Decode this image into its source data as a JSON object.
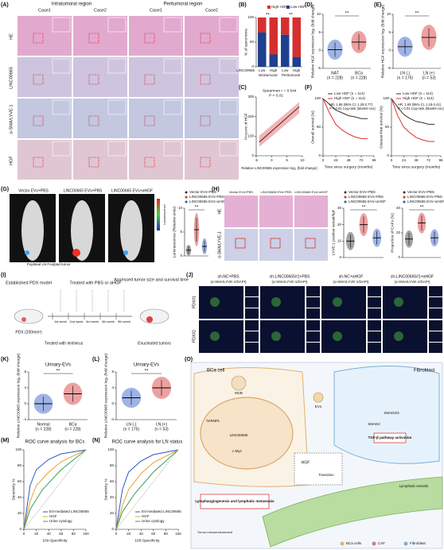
{
  "panels": {
    "A": {
      "label": "(A)",
      "regions": [
        "Intratumoral region",
        "Peritumoral region"
      ],
      "cases": [
        "Case1",
        "Case2",
        "Case1",
        "Case2"
      ],
      "rows": [
        "HE",
        "LINC00665",
        "α-SMA/LYVE-1",
        "HGF"
      ]
    },
    "B": {
      "label": "(B)",
      "ylabel": "% of specimens",
      "xlabel": "LINC00665",
      "categories": [
        "Low",
        "High",
        "Low",
        "High"
      ],
      "groups": [
        "Intratumoral",
        "Peritumoral"
      ],
      "significance": [
        "**",
        "**"
      ],
      "series": [
        {
          "name": "High HGF",
          "color": "#d62f2f",
          "values": [
            30,
            75,
            35,
            80
          ]
        },
        {
          "name": "Low HGF",
          "color": "#1f3f8f",
          "values": [
            70,
            25,
            65,
            20
          ]
        }
      ],
      "ylim": [
        0,
        100
      ],
      "yticks": [
        0,
        50,
        100
      ]
    },
    "C": {
      "label": "(C)",
      "annotation": [
        "Spearman r = 0.644",
        "P < 0.01"
      ],
      "ylabel": "H-score of HGF",
      "xlabel": "Relative LINC00665 expression log₂ (fold change)",
      "xlim": [
        -5,
        10
      ],
      "xticks": [
        -5,
        0,
        5,
        10
      ],
      "ylim": [
        0,
        300
      ],
      "yticks": [
        0,
        100,
        200,
        300
      ],
      "fit": {
        "x": [
          -4,
          9
        ],
        "y": [
          70,
          250
        ]
      },
      "color": "#d62f2f"
    },
    "D": {
      "label": "(D)",
      "ylabel": "Relative HGF expression log₂ (fold change)",
      "categories": [
        "NAT",
        "BCa"
      ],
      "counts": [
        "(n = 228)",
        "(n = 228)"
      ],
      "means": [
        0.2,
        2.3
      ],
      "sds": [
        2.0,
        2.2
      ],
      "colors": [
        "#2a56c6",
        "#d62f2f"
      ],
      "ylim": [
        -5,
        10
      ],
      "yticks": [
        -5,
        0,
        5,
        10
      ],
      "significance": "**"
    },
    "E": {
      "label": "(E)",
      "ylabel": "Relative HGF expression log₂ (fold change)",
      "categories": [
        "LN (-)",
        "LN (+)"
      ],
      "counts": [
        "(n = 175)",
        "(n = 53)"
      ],
      "means": [
        1.0,
        3.6
      ],
      "sds": [
        2.0,
        2.5
      ],
      "colors": [
        "#2a56c6",
        "#d62f2f"
      ],
      "ylim": [
        -5,
        10
      ],
      "yticks": [
        -5,
        0,
        5,
        10
      ],
      "significance": "**"
    },
    "F": {
      "label": "(F)",
      "xlabel": "Time since surgery (months)",
      "xlim": [
        0,
        96
      ],
      "xticks": [
        0,
        24,
        48,
        72,
        96
      ],
      "ylim": [
        0,
        100
      ],
      "yticks": [
        0,
        50,
        100
      ],
      "charts": [
        {
          "ylabel": "Overall survival (%)",
          "annotation": [
            "HR, 1.88 (95% CI, 1.28-2.77)",
            "P < 0.01 Log-rank (Mantel-cox)"
          ],
          "series": [
            {
              "name": "Low HGF (n = 114)",
              "color": "#333333",
              "x": [
                0,
                12,
                24,
                36,
                48,
                60,
                72,
                84
              ],
              "y": [
                100,
                90,
                80,
                75,
                70,
                68,
                65,
                65
              ]
            },
            {
              "name": "High HGF (n = 114)",
              "color": "#e03030",
              "x": [
                0,
                12,
                24,
                36,
                48,
                60,
                72,
                84
              ],
              "y": [
                100,
                75,
                55,
                45,
                38,
                33,
                30,
                30
              ]
            }
          ]
        },
        {
          "ylabel": "Disease-free survival (%)",
          "annotation": [
            "HR, 1.69 (95% CI, 1.19-2.41)",
            "P < 0.01 Log-rank (Mantel-cox)"
          ],
          "series": [
            {
              "name": "Low HGF (n = 114)",
              "color": "#333333",
              "x": [
                0,
                12,
                24,
                36,
                48,
                60,
                72,
                84
              ],
              "y": [
                100,
                85,
                72,
                65,
                60,
                58,
                55,
                55
              ]
            },
            {
              "name": "High HGF (n = 114)",
              "color": "#e03030",
              "x": [
                0,
                12,
                24,
                36,
                48,
                60,
                72,
                84
              ],
              "y": [
                100,
                70,
                50,
                40,
                32,
                28,
                25,
                25
              ]
            }
          ]
        }
      ]
    },
    "G": {
      "label": "(G)",
      "groups": [
        "Vector EVs+PBS",
        "LINC00665 EVs+PBS",
        "LINC00665 EVs+αHGF"
      ],
      "image_labels": [
        "Popliteal LN",
        "Footpad tumor"
      ],
      "colorbar": "Luminescence",
      "plot": {
        "ylabel": "Luminescence (Relative units)",
        "categories": [
          "Vector EVs+PBS",
          "LINC00665 EVs+PBS",
          "LINC00665 EVs+αHGF"
        ],
        "means": [
          1.2,
          5.5,
          2.0
        ],
        "sds": [
          0.8,
          2.5,
          1.2
        ],
        "colors": [
          "#333333",
          "#d62f2f",
          "#2a56c6"
        ],
        "ylim": [
          0,
          10
        ],
        "yticks": [
          0,
          5,
          10
        ],
        "significance": "**"
      }
    },
    "H": {
      "label": "(H)",
      "image_titles": [
        "Vector EVs+PBS",
        "LINC00665 EVs+PBS",
        "LINC00665 EVs+αHGF"
      ],
      "rows": [
        "HE",
        "α-SMA/LYVE-1"
      ],
      "legend": [
        "Vector EVs+PBS",
        "LINC00665 EVs+PBS",
        "LINC00665 EVs+αHGF"
      ],
      "plots": [
        {
          "ylabel": "LYVE-1 positive vessel/hpf",
          "categories": [
            "Vector EVs+PBS",
            "LINC00665 EVs+PBS",
            "LINC00665 EVs+αHGF"
          ],
          "means": [
            10,
            20,
            12
          ],
          "sds": [
            4,
            5,
            4
          ],
          "colors": [
            "#333333",
            "#d62f2f",
            "#2a56c6"
          ],
          "ylim": [
            0,
            30
          ],
          "yticks": [
            0,
            10,
            20,
            30
          ],
          "significance": "**"
        },
        {
          "ylabel": "Proportion of CAFs (%)",
          "categories": [
            "Vector EVs+PBS",
            "LINC00665 EVs+PBS",
            "LINC00665 EVs+αHGF"
          ],
          "means": [
            15,
            28,
            16
          ],
          "sds": [
            5,
            6,
            5
          ],
          "colors": [
            "#333333",
            "#d62f2f",
            "#2a56c6"
          ],
          "ylim": [
            0,
            40
          ],
          "yticks": [
            0,
            20,
            40
          ],
          "significance": "**"
        }
      ]
    },
    "I": {
      "label": "(I)",
      "texts": [
        "Established PDX model",
        "Treated with PBS or αHGF",
        "Assessed tumor size and survival time",
        "PDX (200mm³)",
        "Treated with lentivirus",
        "Enucleated tumors"
      ],
      "weeks": [
        "1st week",
        "2nd week",
        "3rd week",
        "4th week",
        "5th week"
      ]
    },
    "J": {
      "label": "(J)",
      "columns": [
        "sh-NC+PBS",
        "sh-LINC00665#1+PBS",
        "sh-NC+αHGF",
        "sh-LINC00665#1+αHGF"
      ],
      "stain": "(α-SMA/LYVE-1/DAPI)",
      "rows": [
        "PDX#1",
        "PDX#2"
      ],
      "merge": "Merge",
      "channels": [
        "α-SMA",
        "LYVE-1",
        "DAPI"
      ]
    },
    "K": {
      "label": "(K)",
      "title": "Urinary-EVs",
      "ylabel": "Relative LINC00665 expression log₂ (fold change)",
      "categories": [
        "Normal",
        "BCa"
      ],
      "counts": [
        "(n = 228)",
        "(n = 228)"
      ],
      "means": [
        0.0,
        2.5
      ],
      "sds": [
        1.8,
        2.0
      ],
      "colors": [
        "#2a56c6",
        "#d62f2f"
      ],
      "ylim": [
        -4,
        8
      ],
      "yticks": [
        -4,
        0,
        4,
        8
      ],
      "significance": "**"
    },
    "L": {
      "label": "(L)",
      "title": "Urinary-EVs",
      "ylabel": "Relative LINC00665 expression log₂ (fold change)",
      "categories": [
        "LN (-)",
        "LN (+)"
      ],
      "counts": [
        "(n = 175)",
        "(n = 53)"
      ],
      "means": [
        1.5,
        4.0
      ],
      "sds": [
        1.8,
        2.0
      ],
      "colors": [
        "#2a56c6",
        "#d62f2f"
      ],
      "ylim": [
        -4,
        8
      ],
      "yticks": [
        -4,
        0,
        4,
        8
      ],
      "significance": "**"
    },
    "M": {
      "label": "(M)",
      "title": "ROC curve analysis for BCs",
      "xlabel": "100-Specificity",
      "ylabel": "Sensitivity %",
      "xlim": [
        0,
        100
      ],
      "xticks": [
        0,
        20,
        40,
        60,
        80,
        100
      ],
      "ylim": [
        0,
        100
      ],
      "yticks": [
        0,
        20,
        40,
        60,
        80,
        100
      ],
      "series": [
        {
          "name": "EV-mediated LINC00665",
          "color": "#2a56c6",
          "x": [
            0,
            10,
            20,
            40,
            60,
            100
          ],
          "y": [
            0,
            55,
            75,
            88,
            95,
            100
          ]
        },
        {
          "name": "HGF",
          "color": "#e8a030",
          "x": [
            0,
            10,
            20,
            40,
            60,
            100
          ],
          "y": [
            0,
            35,
            55,
            72,
            85,
            100
          ]
        },
        {
          "name": "Urine cytology",
          "color": "#3aa050",
          "x": [
            0,
            10,
            30,
            60,
            100
          ],
          "y": [
            0,
            25,
            50,
            75,
            100
          ]
        }
      ]
    },
    "N": {
      "label": "(N)",
      "title": "ROC curve analysis for LN status",
      "xlabel": "100-Specificity",
      "ylabel": "Sensitivity %",
      "xlim": [
        0,
        100
      ],
      "xticks": [
        0,
        20,
        40,
        60,
        80,
        100
      ],
      "ylim": [
        0,
        100
      ],
      "yticks": [
        0,
        20,
        40,
        60,
        80,
        100
      ],
      "series": [
        {
          "name": "EV-mediated LINC00665",
          "color": "#2a56c6",
          "x": [
            0,
            10,
            20,
            40,
            60,
            100
          ],
          "y": [
            0,
            50,
            72,
            86,
            94,
            100
          ]
        },
        {
          "name": "HGF",
          "color": "#e8a030",
          "x": [
            0,
            10,
            20,
            40,
            60,
            100
          ],
          "y": [
            0,
            30,
            50,
            70,
            84,
            100
          ]
        },
        {
          "name": "Urine cytology",
          "color": "#3aa050",
          "x": [
            0,
            10,
            30,
            60,
            100
          ],
          "y": [
            0,
            22,
            45,
            72,
            100
          ]
        }
      ]
    },
    "O": {
      "label": "(O)",
      "labels": [
        "BCa cell",
        "Fibroblast",
        "MVB",
        "EVs",
        "hnRNPL",
        "LINC00665",
        "c-Myc",
        "HGF",
        "Transition",
        "SMAD2/3",
        "SMAD4",
        "TGF-β pathway activation",
        "Lymphangiogenesis and lymphatic metastasis",
        "Lymphatic vessels",
        "Tumor microenvironment"
      ],
      "legend": [
        "BCa cells",
        "CAF",
        "Fibroblast"
      ]
    }
  }
}
